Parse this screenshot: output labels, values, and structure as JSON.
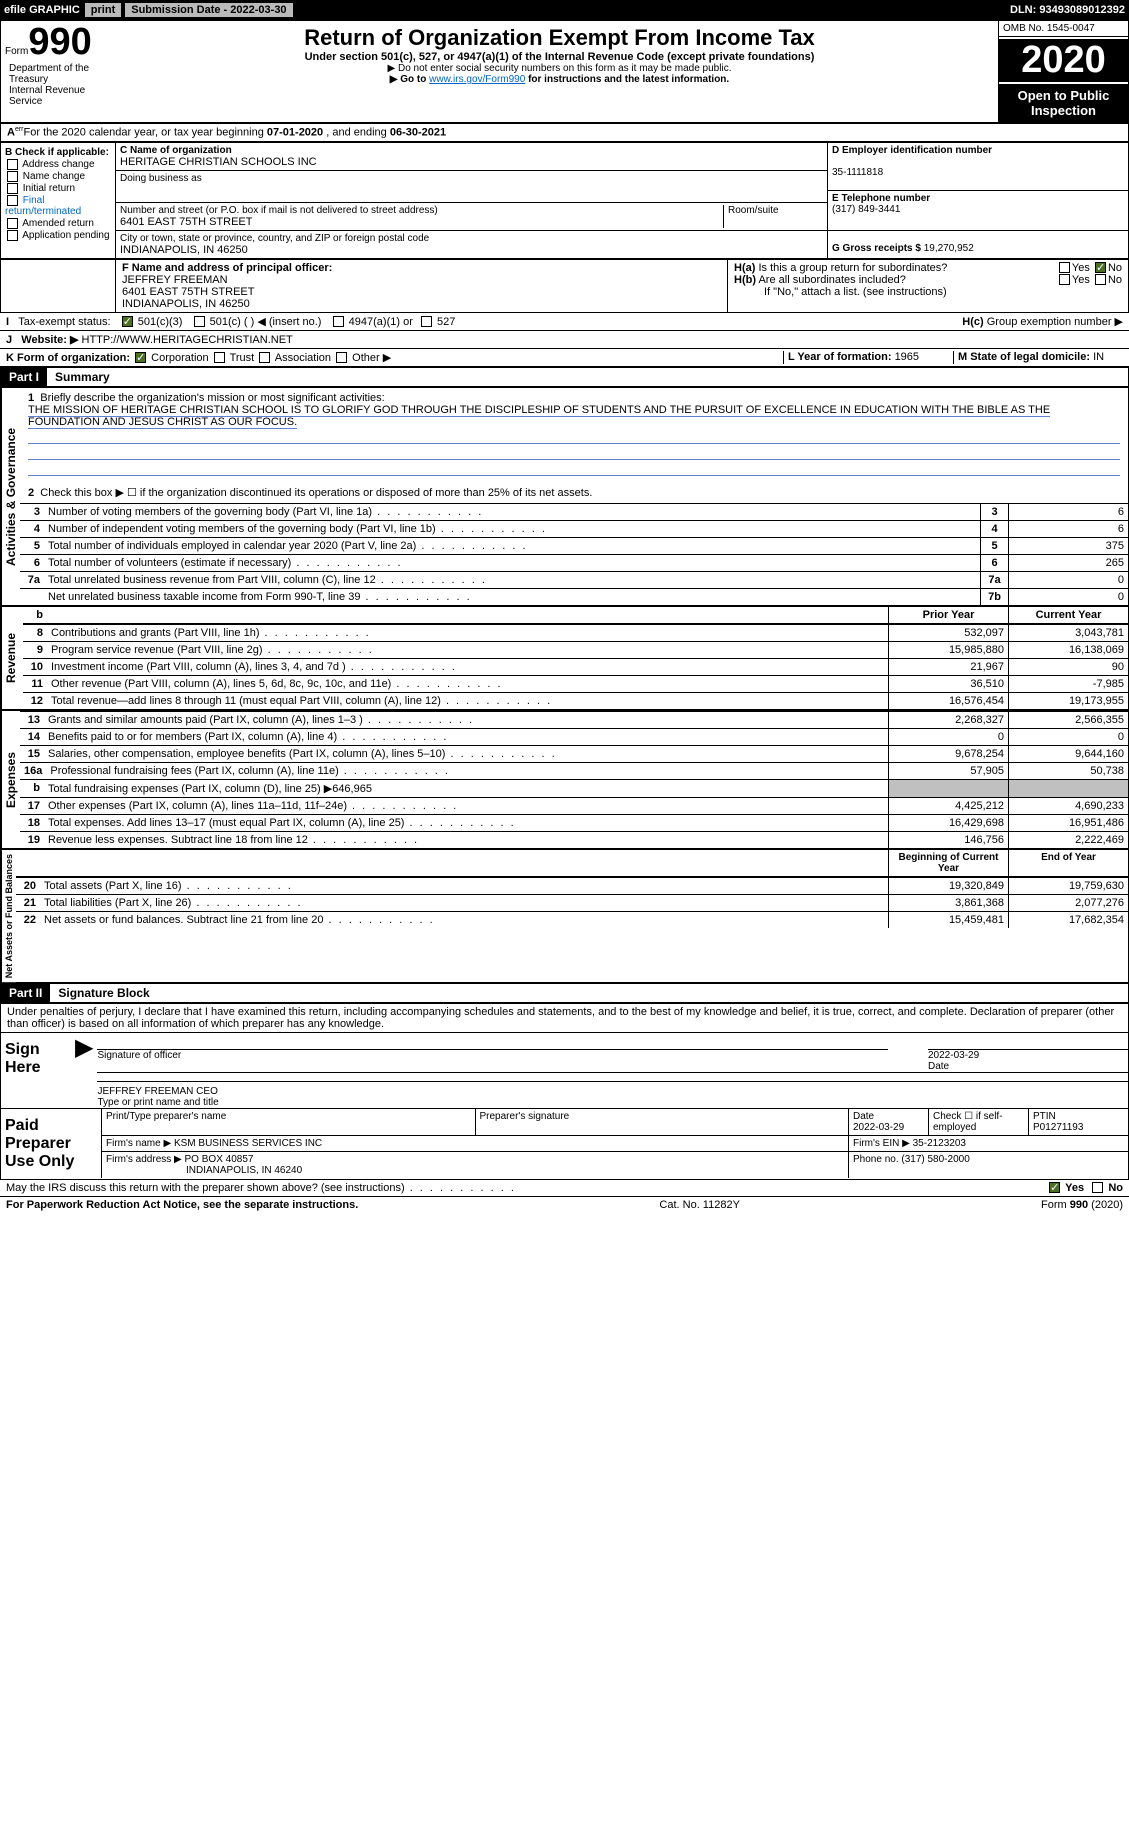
{
  "topbar": {
    "efile": "efile GRAPHIC",
    "print": "print",
    "submission_label": "Submission Date - ",
    "submission_date": "2022-03-30",
    "dln_label": "DLN: ",
    "dln": "93493089012392"
  },
  "header": {
    "form_word": "Form",
    "form_num": "990",
    "title": "Return of Organization Exempt From Income Tax",
    "subtitle": "Under section 501(c), 527, or 4947(a)(1) of the Internal Revenue Code (except private foundations)",
    "note1": "▶ Do not enter social security numbers on this form as it may be made public.",
    "note2_pre": "▶ Go to ",
    "note2_link": "www.irs.gov/Form990",
    "note2_post": " for instructions and the latest information.",
    "omb": "OMB No. 1545-0047",
    "year": "2020",
    "open": "Open to Public Inspection",
    "dept": "Department of the Treasury\nInternal Revenue Service"
  },
  "section_a": {
    "text": "For the 2020 calendar year, or tax year beginning ",
    "begin": "07-01-2020",
    "mid": " , and ending ",
    "end": "06-30-2021"
  },
  "section_b": {
    "label": "B Check if applicable:",
    "items": [
      "Address change",
      "Name change",
      "Initial return",
      "Final return/terminated",
      "Amended return",
      "Application pending"
    ]
  },
  "section_c": {
    "name_label": "C Name of organization",
    "name": "HERITAGE CHRISTIAN SCHOOLS INC",
    "dba_label": "Doing business as",
    "addr_label": "Number and street (or P.O. box if mail is not delivered to street address)",
    "addr": "6401 EAST 75TH STREET",
    "room_label": "Room/suite",
    "city_label": "City or town, state or province, country, and ZIP or foreign postal code",
    "city": "INDIANAPOLIS, IN  46250"
  },
  "section_d": {
    "label": "D Employer identification number",
    "val": "35-1111818"
  },
  "section_e": {
    "label": "E Telephone number",
    "val": "(317) 849-3441"
  },
  "section_g": {
    "label": "G Gross receipts $ ",
    "val": "19,270,952"
  },
  "section_f": {
    "label": "F Name and address of principal officer:",
    "name": "JEFFREY FREEMAN",
    "addr": "6401 EAST 75TH STREET",
    "city": "INDIANAPOLIS, IN  46250"
  },
  "section_h": {
    "a": "Is this a group return for subordinates?",
    "b": "Are all subordinates included?",
    "note": "If \"No,\" attach a list. (see instructions)",
    "c": "Group exemption number ▶"
  },
  "section_i": {
    "label": "Tax-exempt status:",
    "opt1": "501(c)(3)",
    "opt2": "501(c) (  ) ◀ (insert no.)",
    "opt3": "4947(a)(1) or",
    "opt4": "527"
  },
  "section_j": {
    "label": "Website: ▶",
    "val": "HTTP://WWW.HERITAGECHRISTIAN.NET"
  },
  "section_k": {
    "label": "K Form of organization:",
    "opts": [
      "Corporation",
      "Trust",
      "Association",
      "Other ▶"
    ]
  },
  "section_l": {
    "label": "L Year of formation: ",
    "val": "1965"
  },
  "section_m": {
    "label": "M State of legal domicile: ",
    "val": "IN"
  },
  "part1": {
    "title": "Part I",
    "subtitle": "Summary",
    "q1": "Briefly describe the organization's mission or most significant activities:",
    "mission": "THE MISSION OF HERITAGE CHRISTIAN SCHOOL IS TO GLORIFY GOD THROUGH THE DISCIPLESHIP OF STUDENTS AND THE PURSUIT OF EXCELLENCE IN EDUCATION WITH THE BIBLE AS THE FOUNDATION AND JESUS CHRIST AS OUR FOCUS.",
    "q2": "Check this box ▶ ☐ if the organization discontinued its operations or disposed of more than 25% of its net assets.",
    "gov_label": "Activities & Governance",
    "rev_label": "Revenue",
    "exp_label": "Expenses",
    "net_label": "Net Assets or Fund Balances",
    "prior_hdr": "Prior Year",
    "current_hdr": "Current Year",
    "boy_hdr": "Beginning of Current Year",
    "eoy_hdr": "End of Year",
    "lines_gov": [
      {
        "n": "3",
        "d": "Number of voting members of the governing body (Part VI, line 1a)",
        "box": "3",
        "v": "6"
      },
      {
        "n": "4",
        "d": "Number of independent voting members of the governing body (Part VI, line 1b)",
        "box": "4",
        "v": "6"
      },
      {
        "n": "5",
        "d": "Total number of individuals employed in calendar year 2020 (Part V, line 2a)",
        "box": "5",
        "v": "375"
      },
      {
        "n": "6",
        "d": "Total number of volunteers (estimate if necessary)",
        "box": "6",
        "v": "265"
      },
      {
        "n": "7a",
        "d": "Total unrelated business revenue from Part VIII, column (C), line 12",
        "box": "7a",
        "v": "0"
      },
      {
        "n": "",
        "d": "Net unrelated business taxable income from Form 990-T, line 39",
        "box": "7b",
        "v": "0"
      }
    ],
    "lines_rev": [
      {
        "n": "8",
        "d": "Contributions and grants (Part VIII, line 1h)",
        "p": "532,097",
        "c": "3,043,781"
      },
      {
        "n": "9",
        "d": "Program service revenue (Part VIII, line 2g)",
        "p": "15,985,880",
        "c": "16,138,069"
      },
      {
        "n": "10",
        "d": "Investment income (Part VIII, column (A), lines 3, 4, and 7d )",
        "p": "21,967",
        "c": "90"
      },
      {
        "n": "11",
        "d": "Other revenue (Part VIII, column (A), lines 5, 6d, 8c, 9c, 10c, and 11e)",
        "p": "36,510",
        "c": "-7,985"
      },
      {
        "n": "12",
        "d": "Total revenue—add lines 8 through 11 (must equal Part VIII, column (A), line 12)",
        "p": "16,576,454",
        "c": "19,173,955"
      }
    ],
    "lines_exp": [
      {
        "n": "13",
        "d": "Grants and similar amounts paid (Part IX, column (A), lines 1–3 )",
        "p": "2,268,327",
        "c": "2,566,355"
      },
      {
        "n": "14",
        "d": "Benefits paid to or for members (Part IX, column (A), line 4)",
        "p": "0",
        "c": "0"
      },
      {
        "n": "15",
        "d": "Salaries, other compensation, employee benefits (Part IX, column (A), lines 5–10)",
        "p": "9,678,254",
        "c": "9,644,160"
      },
      {
        "n": "16a",
        "d": "Professional fundraising fees (Part IX, column (A), line 11e)",
        "p": "57,905",
        "c": "50,738"
      },
      {
        "n": "b",
        "d": "Total fundraising expenses (Part IX, column (D), line 25) ▶646,965",
        "p": "",
        "c": "",
        "grey": true
      },
      {
        "n": "17",
        "d": "Other expenses (Part IX, column (A), lines 11a–11d, 11f–24e)",
        "p": "4,425,212",
        "c": "4,690,233"
      },
      {
        "n": "18",
        "d": "Total expenses. Add lines 13–17 (must equal Part IX, column (A), line 25)",
        "p": "16,429,698",
        "c": "16,951,486"
      },
      {
        "n": "19",
        "d": "Revenue less expenses. Subtract line 18 from line 12",
        "p": "146,756",
        "c": "2,222,469"
      }
    ],
    "lines_net": [
      {
        "n": "20",
        "d": "Total assets (Part X, line 16)",
        "p": "19,320,849",
        "c": "19,759,630"
      },
      {
        "n": "21",
        "d": "Total liabilities (Part X, line 26)",
        "p": "3,861,368",
        "c": "2,077,276"
      },
      {
        "n": "22",
        "d": "Net assets or fund balances. Subtract line 21 from line 20",
        "p": "15,459,481",
        "c": "17,682,354"
      }
    ]
  },
  "part2": {
    "title": "Part II",
    "subtitle": "Signature Block",
    "decl": "Under penalties of perjury, I declare that I have examined this return, including accompanying schedules and statements, and to the best of my knowledge and belief, it is true, correct, and complete. Declaration of preparer (other than officer) is based on all information of which preparer has any knowledge.",
    "sign_here": "Sign Here",
    "sig_officer": "Signature of officer",
    "sig_date": "2022-03-29",
    "date_label": "Date",
    "officer": "JEFFREY FREEMAN CEO",
    "officer_label": "Type or print name and title",
    "paid": "Paid Preparer Use Only",
    "prep_name_label": "Print/Type preparer's name",
    "prep_sig_label": "Preparer's signature",
    "prep_date": "2022-03-29",
    "check_self": "Check ☐ if self-employed",
    "ptin_label": "PTIN",
    "ptin": "P01271193",
    "firm_name_label": "Firm's name    ▶ ",
    "firm_name": "KSM BUSINESS SERVICES INC",
    "firm_ein_label": "Firm's EIN ▶ ",
    "firm_ein": "35-2123203",
    "firm_addr_label": "Firm's address ▶ ",
    "firm_addr": "PO BOX 40857",
    "firm_city": "INDIANAPOLIS, IN  46240",
    "phone_label": "Phone no. ",
    "phone": "(317) 580-2000",
    "discuss": "May the IRS discuss this return with the preparer shown above? (see instructions)",
    "yes": "Yes",
    "no": "No"
  },
  "footer": {
    "left": "For Paperwork Reduction Act Notice, see the separate instructions.",
    "mid": "Cat. No. 11282Y",
    "right": "Form 990 (2020)"
  }
}
